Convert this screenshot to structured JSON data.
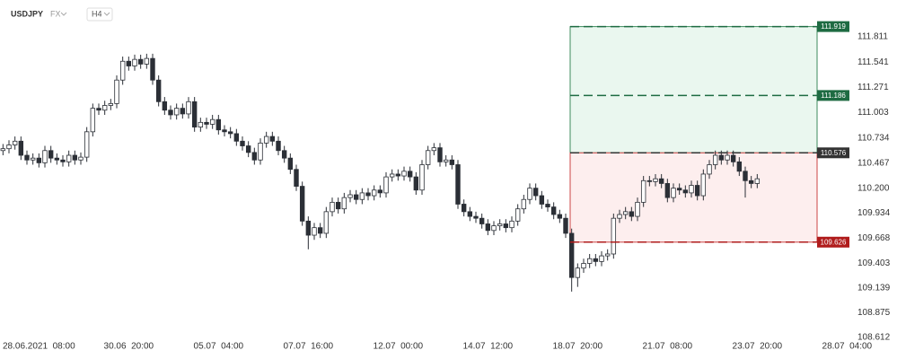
{
  "header": {
    "symbol": "USDJPY",
    "market": "FX",
    "timeframe": "H4"
  },
  "chart_data": {
    "type": "candlestick",
    "open": [
      110.6,
      110.62,
      110.66,
      110.7,
      110.55,
      110.5,
      110.52,
      110.47,
      110.6,
      110.52,
      110.5,
      110.48,
      110.55,
      110.5,
      110.53,
      110.8,
      111.05,
      111.03,
      111.08,
      111.1,
      111.35,
      111.55,
      111.5,
      111.57,
      111.52,
      111.58,
      111.35,
      111.12,
      111.03,
      110.98,
      111.05,
      110.99,
      111.12,
      110.85,
      110.9,
      110.88,
      110.93,
      110.82,
      110.8,
      110.78,
      110.7,
      110.65,
      110.58,
      110.5,
      110.68,
      110.75,
      110.7,
      110.6,
      110.52,
      110.4,
      110.22,
      109.85,
      109.7,
      109.78,
      109.72,
      109.95,
      110.05,
      109.98,
      110.1,
      110.13,
      110.08,
      110.15,
      110.12,
      110.18,
      110.15,
      110.32,
      110.35,
      110.33,
      110.38,
      110.32,
      110.18,
      110.45,
      110.6,
      110.63,
      110.48,
      110.5,
      110.45,
      110.03,
      109.95,
      109.9,
      109.88,
      109.82,
      109.75,
      109.8,
      109.82,
      109.78,
      109.85,
      109.98,
      110.08,
      110.2,
      110.12,
      110.03,
      110.0,
      109.92,
      109.88,
      109.72,
      109.25,
      109.35,
      109.4,
      109.45,
      109.42,
      109.48,
      109.5,
      109.88,
      109.92,
      109.95,
      109.9,
      110.05,
      110.28,
      110.27,
      110.3,
      110.25,
      110.1,
      110.2,
      110.18,
      110.15,
      110.23,
      110.12,
      110.35,
      110.45,
      110.55,
      110.5,
      110.55,
      110.48,
      110.38,
      110.28,
      110.25
    ],
    "high": [
      110.67,
      110.71,
      110.75,
      110.75,
      110.6,
      110.57,
      110.57,
      110.65,
      110.65,
      110.57,
      110.55,
      110.6,
      110.6,
      110.58,
      110.85,
      111.1,
      111.1,
      111.13,
      111.15,
      111.4,
      111.6,
      111.6,
      111.62,
      111.62,
      111.63,
      111.63,
      111.4,
      111.17,
      111.08,
      111.1,
      111.1,
      111.17,
      111.17,
      110.95,
      110.95,
      110.98,
      110.98,
      110.87,
      110.85,
      110.83,
      110.75,
      110.7,
      110.63,
      110.73,
      110.8,
      110.8,
      110.75,
      110.65,
      110.57,
      110.45,
      110.27,
      109.9,
      109.83,
      109.83,
      110.0,
      110.1,
      110.1,
      110.15,
      110.18,
      110.18,
      110.2,
      110.2,
      110.23,
      110.23,
      110.37,
      110.4,
      110.4,
      110.43,
      110.43,
      110.37,
      110.5,
      110.65,
      110.68,
      110.68,
      110.55,
      110.55,
      110.5,
      110.08,
      110.0,
      109.95,
      109.93,
      109.87,
      109.85,
      109.87,
      109.87,
      109.9,
      110.03,
      110.13,
      110.25,
      110.25,
      110.17,
      110.08,
      110.05,
      109.97,
      109.93,
      109.77,
      109.4,
      109.45,
      109.5,
      109.5,
      109.53,
      109.55,
      109.93,
      109.97,
      110.0,
      110.0,
      110.1,
      110.33,
      110.33,
      110.35,
      110.35,
      110.3,
      110.25,
      110.25,
      110.23,
      110.28,
      110.28,
      110.4,
      110.5,
      110.6,
      110.6,
      110.6,
      110.6,
      110.53,
      110.43,
      110.33,
      110.35
    ],
    "low": [
      110.55,
      110.57,
      110.61,
      110.5,
      110.45,
      110.45,
      110.42,
      110.42,
      110.47,
      110.45,
      110.43,
      110.43,
      110.45,
      110.45,
      110.48,
      110.75,
      110.98,
      110.98,
      111.03,
      111.05,
      111.3,
      111.45,
      111.45,
      111.47,
      111.47,
      111.3,
      111.07,
      110.98,
      110.93,
      110.93,
      110.94,
      110.94,
      110.8,
      110.8,
      110.83,
      110.83,
      110.77,
      110.75,
      110.73,
      110.65,
      110.6,
      110.53,
      110.45,
      110.45,
      110.63,
      110.65,
      110.55,
      110.47,
      110.35,
      110.17,
      109.8,
      109.55,
      109.65,
      109.67,
      109.67,
      109.9,
      109.93,
      109.93,
      110.05,
      110.03,
      110.03,
      110.07,
      110.07,
      110.1,
      110.1,
      110.27,
      110.28,
      110.28,
      110.27,
      110.13,
      110.13,
      110.4,
      110.55,
      110.43,
      110.43,
      110.4,
      109.98,
      109.9,
      109.85,
      109.83,
      109.77,
      109.7,
      109.7,
      109.75,
      109.73,
      109.73,
      109.8,
      109.93,
      110.03,
      110.07,
      109.98,
      109.95,
      109.87,
      109.83,
      109.67,
      109.1,
      109.15,
      109.3,
      109.35,
      109.37,
      109.37,
      109.43,
      109.45,
      109.83,
      109.87,
      109.85,
      109.85,
      110.0,
      110.22,
      110.22,
      110.2,
      110.05,
      110.05,
      110.13,
      110.1,
      110.1,
      110.07,
      110.07,
      110.3,
      110.4,
      110.45,
      110.45,
      110.43,
      110.33,
      110.1,
      110.2,
      110.2
    ],
    "close": [
      110.62,
      110.66,
      110.7,
      110.55,
      110.5,
      110.52,
      110.47,
      110.6,
      110.52,
      110.5,
      110.48,
      110.55,
      110.5,
      110.53,
      110.8,
      111.05,
      111.03,
      111.08,
      111.1,
      111.35,
      111.55,
      111.5,
      111.57,
      111.52,
      111.58,
      111.35,
      111.12,
      111.03,
      110.98,
      111.05,
      110.99,
      111.12,
      110.85,
      110.9,
      110.88,
      110.93,
      110.82,
      110.8,
      110.78,
      110.7,
      110.65,
      110.58,
      110.5,
      110.68,
      110.75,
      110.7,
      110.6,
      110.52,
      110.4,
      110.22,
      109.85,
      109.7,
      109.78,
      109.72,
      109.95,
      110.05,
      109.98,
      110.1,
      110.13,
      110.08,
      110.15,
      110.12,
      110.18,
      110.15,
      110.32,
      110.35,
      110.33,
      110.38,
      110.32,
      110.18,
      110.45,
      110.6,
      110.63,
      110.48,
      110.5,
      110.45,
      110.03,
      109.95,
      109.9,
      109.88,
      109.82,
      109.75,
      109.8,
      109.82,
      109.78,
      109.85,
      109.98,
      110.08,
      110.2,
      110.12,
      110.03,
      110.0,
      109.92,
      109.88,
      109.72,
      109.25,
      109.35,
      109.4,
      109.45,
      109.42,
      109.48,
      109.5,
      109.88,
      109.92,
      109.95,
      109.9,
      110.05,
      110.28,
      110.27,
      110.3,
      110.25,
      110.1,
      110.2,
      110.18,
      110.15,
      110.23,
      110.12,
      110.35,
      110.45,
      110.55,
      110.5,
      110.55,
      110.48,
      110.38,
      110.28,
      110.25,
      110.3
    ],
    "up_color": "#ffffff",
    "down_color": "#2b2f36",
    "wick_color": "#2b2f36",
    "xlim": [
      -0.5,
      136
    ],
    "xticks": [
      {
        "value": 6,
        "label": "28.06.2021  08:00"
      },
      {
        "value": 21,
        "label": "30.06  20:00"
      },
      {
        "value": 36,
        "label": "05.07  04:00"
      },
      {
        "value": 51,
        "label": "07.07  16:00"
      },
      {
        "value": 66,
        "label": "12.07  00:00"
      },
      {
        "value": 81,
        "label": "14.07  12:00"
      },
      {
        "value": 96,
        "label": "18.07  20:00"
      },
      {
        "value": 111,
        "label": "21.07  08:00"
      },
      {
        "value": 126,
        "label": "23.07  20:00"
      },
      {
        "value": 141,
        "label": "28.07  04:00"
      }
    ],
    "ylim": [
      108.507,
      112.154
    ],
    "yticks": [
      111.811,
      111.541,
      111.271,
      111.003,
      110.734,
      110.467,
      {
        "value": 110.2,
        "label": "110.200"
      },
      109.934,
      109.668,
      109.403,
      109.139,
      108.875,
      108.612
    ],
    "levels": [
      {
        "value": 111.919,
        "color": "#1e6b42"
      },
      {
        "value": 111.186,
        "color": "#1e6b42"
      },
      {
        "value": 110.576,
        "color": "#333333"
      },
      {
        "value": 109.626,
        "color": "#b01c1c"
      }
    ]
  }
}
